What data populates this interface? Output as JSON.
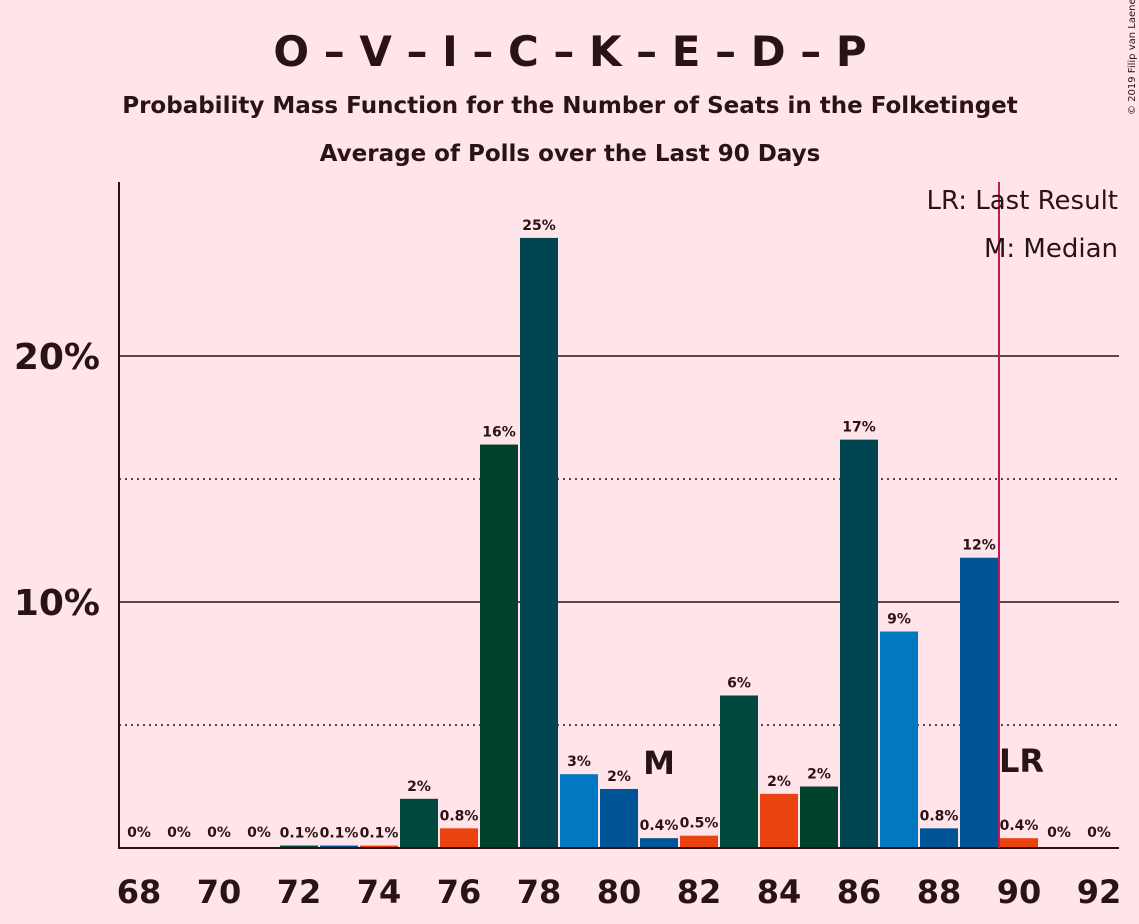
{
  "chart_data": {
    "type": "bar",
    "title": "O – V – I – C – K – E – D – P",
    "subtitle": "Probability Mass Function for the Number of Seats in the Folketinget",
    "subtitle2": "Average of Polls over the Last 90 Days",
    "copyright": "© 2019 Filip van Laenen",
    "legend": [
      "LR: Last Result",
      "M: Median"
    ],
    "legend_position": "top-right",
    "x": [
      68,
      69,
      70,
      71,
      72,
      73,
      74,
      75,
      76,
      77,
      78,
      79,
      80,
      81,
      82,
      83,
      84,
      85,
      86,
      87,
      88,
      89,
      90,
      91,
      92
    ],
    "values": [
      0,
      0,
      0,
      0,
      0.1,
      0.1,
      0.1,
      2,
      0.8,
      16.4,
      24.8,
      3,
      2.4,
      0.4,
      0.5,
      6.2,
      2.2,
      2.5,
      16.6,
      8.8,
      0.8,
      11.8,
      0.4,
      0,
      0
    ],
    "labels": [
      "0%",
      "0%",
      "0%",
      "0%",
      "0.1%",
      "0.1%",
      "0.1%",
      "2%",
      "0.8%",
      "16%",
      "25%",
      "3%",
      "2%",
      "0.4%",
      "0.5%",
      "6%",
      "2%",
      "2%",
      "17%",
      "9%",
      "0.8%",
      "12%",
      "0.4%",
      "0%",
      "0%"
    ],
    "colors": [
      "#005596",
      "#0079C2",
      "#00493E",
      "#E84311",
      "#00493E",
      "#005596",
      "#E84311",
      "#00493E",
      "#E84311",
      "#00422B",
      "#004650",
      "#0079C2",
      "#005596",
      "#005596",
      "#E84311",
      "#00493E",
      "#E84311",
      "#00422B",
      "#004650",
      "#0079C2",
      "#005596",
      "#005596",
      "#E84311",
      "#005596",
      "#005596"
    ],
    "xticks": [
      "68",
      "70",
      "72",
      "74",
      "76",
      "78",
      "80",
      "82",
      "84",
      "86",
      "88",
      "90",
      "92"
    ],
    "yticks": [
      "10%",
      "20%"
    ],
    "ylim": [
      0,
      27
    ],
    "median_seat": 81,
    "median_label": "M",
    "last_result_seat": 90,
    "last_result_label": "LR",
    "grid_solid": [
      10,
      20
    ],
    "grid_dotted": [
      5,
      15
    ],
    "last_result_line_color": "#C2185B"
  }
}
